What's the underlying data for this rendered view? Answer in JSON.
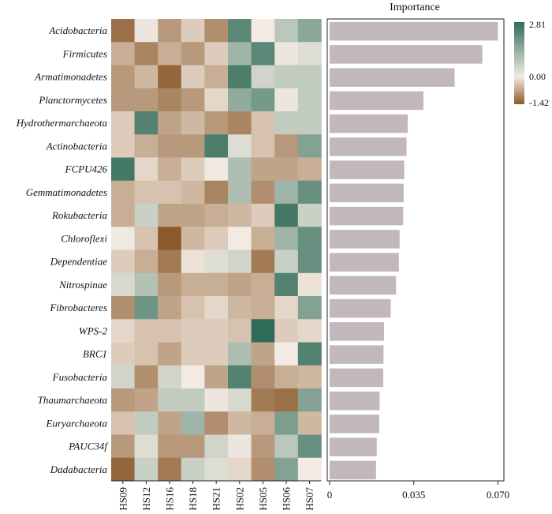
{
  "chart_data": [
    {
      "type": "heatmap",
      "rows": [
        "Acidobacteria",
        "Firmicutes",
        "Armatimonadetes",
        "Planctormycetes",
        "Hydrothermarchaeota",
        "Actinobacteria",
        "FCPU426",
        "Gemmatimonadetes",
        "Rokubacteria",
        "Chloroflexi",
        "Dependentiae",
        "Nitrospinae",
        "Fibrobacteres",
        "WPS-2",
        "BRC1",
        "Fusobacteria",
        "Thaumarchaeota",
        "Euryarchaeota",
        "PAUC34f",
        "Dadabacteria"
      ],
      "columns": [
        "HS09",
        "HS12",
        "HS16",
        "HS18",
        "HS21",
        "HS02",
        "HS05",
        "HS06",
        "HS07"
      ],
      "values": [
        [
          -1.2,
          0.1,
          -0.8,
          -0.3,
          -0.9,
          2.2,
          0.0,
          0.8,
          1.5
        ],
        [
          -0.6,
          -1.0,
          -0.6,
          -0.8,
          -0.3,
          1.2,
          2.2,
          0.1,
          0.3
        ],
        [
          -0.8,
          -0.5,
          -1.3,
          -0.3,
          -0.6,
          2.4,
          0.5,
          0.7,
          0.7
        ],
        [
          -0.8,
          -0.8,
          -1.0,
          -0.8,
          -0.2,
          1.4,
          1.8,
          0.1,
          0.7
        ],
        [
          -0.3,
          2.3,
          -0.7,
          -0.5,
          -0.8,
          -1.0,
          -0.4,
          0.7,
          0.7
        ],
        [
          -0.3,
          -0.6,
          -0.8,
          -0.8,
          2.4,
          0.3,
          -0.4,
          -0.8,
          1.6
        ],
        [
          2.5,
          -0.2,
          -0.6,
          -0.3,
          0.05,
          1.0,
          -0.7,
          -0.7,
          -0.6
        ],
        [
          -0.6,
          -0.4,
          -0.4,
          -0.5,
          -1.0,
          1.0,
          -0.9,
          1.2,
          2.0
        ],
        [
          -0.6,
          0.6,
          -0.7,
          -0.7,
          -0.6,
          -0.5,
          -0.3,
          2.5,
          0.6
        ],
        [
          0.05,
          -0.4,
          -1.42,
          -0.5,
          -0.3,
          0.0,
          -0.6,
          1.2,
          2.0
        ],
        [
          -0.3,
          -0.6,
          -1.1,
          -0.1,
          0.3,
          0.5,
          -1.1,
          0.6,
          2.0
        ],
        [
          0.4,
          0.9,
          -0.8,
          -0.6,
          -0.6,
          -0.7,
          -0.6,
          2.3,
          -0.1
        ],
        [
          -0.9,
          1.9,
          -0.7,
          -0.4,
          -0.2,
          -0.5,
          -0.6,
          -0.2,
          1.6
        ],
        [
          -0.2,
          -0.4,
          -0.4,
          -0.3,
          -0.3,
          -0.4,
          2.81,
          -0.3,
          -0.2
        ],
        [
          -0.3,
          -0.4,
          -0.7,
          -0.3,
          -0.3,
          1.0,
          -0.7,
          0.0,
          2.3
        ],
        [
          0.5,
          -0.9,
          0.5,
          0.0,
          -0.7,
          2.3,
          -0.9,
          -0.6,
          -0.5
        ],
        [
          -0.8,
          -0.7,
          0.7,
          0.7,
          0.1,
          0.4,
          -1.1,
          -1.2,
          1.6
        ],
        [
          -0.4,
          0.7,
          -0.7,
          1.2,
          -0.9,
          -0.5,
          -0.6,
          1.7,
          -0.5
        ],
        [
          -0.8,
          0.3,
          -0.8,
          -0.8,
          0.5,
          0.1,
          -0.8,
          0.8,
          2.0
        ],
        [
          -1.3,
          0.6,
          -1.1,
          0.6,
          0.3,
          -0.2,
          -0.9,
          1.6,
          0.0
        ]
      ],
      "colorbar": {
        "min": -1.42,
        "max": 2.81,
        "ticks": [
          "2.81",
          "0.00",
          "-1.42"
        ],
        "low_color": "#8b5a2b",
        "mid_color": "#f3ebe3",
        "high_color": "#2f6b58"
      }
    },
    {
      "type": "bar",
      "orientation": "horizontal",
      "title": "Importance",
      "categories": [
        "Acidobacteria",
        "Firmicutes",
        "Armatimonadetes",
        "Planctormycetes",
        "Hydrothermarchaeota",
        "Actinobacteria",
        "FCPU426",
        "Gemmatimonadetes",
        "Rokubacteria",
        "Chloroflexi",
        "Dependentiae",
        "Nitrospinae",
        "Fibrobacteres",
        "WPS-2",
        "BRC1",
        "Fusobacteria",
        "Thaumarchaeota",
        "Euryarchaeota",
        "PAUC34f",
        "Dadabacteria"
      ],
      "values": [
        0.07,
        0.0635,
        0.052,
        0.039,
        0.0325,
        0.032,
        0.031,
        0.0308,
        0.0306,
        0.0291,
        0.0288,
        0.0276,
        0.0254,
        0.0226,
        0.0224,
        0.0223,
        0.0208,
        0.0206,
        0.0196,
        0.0193
      ],
      "xticks": [
        "0",
        "0.035",
        "0.070"
      ],
      "xlim": [
        0,
        0.0705
      ],
      "bar_color": "#c2b7bb"
    }
  ]
}
